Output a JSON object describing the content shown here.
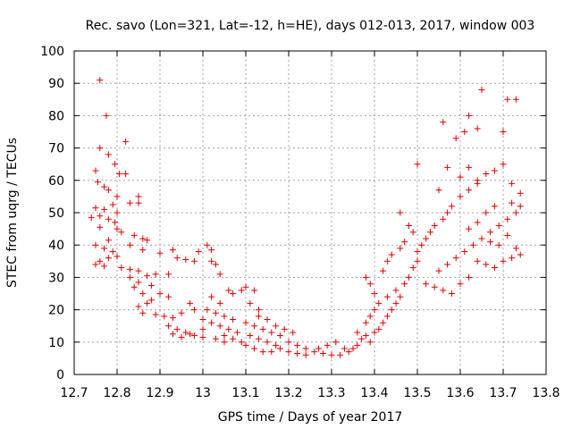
{
  "chart_data": {
    "type": "scatter",
    "title": "Rec. savo (Lon=321, Lat=-12, h=HE), days 012-013, 2017, window 003",
    "xlabel": "GPS time / Days of year 2017",
    "ylabel": "STEC from uqrg / TECUs",
    "xlim": [
      12.7,
      13.8
    ],
    "ylim": [
      0,
      100
    ],
    "xticks": [
      "12.7",
      "12.8",
      "12.9",
      "13",
      "13.1",
      "13.2",
      "13.3",
      "13.4",
      "13.5",
      "13.6",
      "13.7",
      "13.8"
    ],
    "yticks": [
      "0",
      "10",
      "20",
      "30",
      "40",
      "50",
      "60",
      "70",
      "80",
      "90",
      "100"
    ],
    "grid": true,
    "marker": "plus",
    "color": "#e00000",
    "series": [
      {
        "values": [
          [
            12.76,
            91
          ],
          [
            12.775,
            80
          ],
          [
            12.82,
            72
          ],
          [
            12.76,
            70
          ],
          [
            12.78,
            68
          ],
          [
            12.795,
            65
          ],
          [
            12.75,
            63
          ],
          [
            12.805,
            62
          ],
          [
            12.82,
            62
          ],
          [
            12.755,
            59.5
          ],
          [
            12.77,
            58
          ],
          [
            12.78,
            57
          ],
          [
            12.8,
            55
          ],
          [
            12.85,
            55
          ],
          [
            12.85,
            53
          ],
          [
            12.79,
            52.5
          ],
          [
            12.83,
            53
          ],
          [
            12.75,
            51.5
          ],
          [
            12.77,
            51
          ],
          [
            12.8,
            50
          ],
          [
            12.76,
            49
          ],
          [
            12.74,
            48.5
          ],
          [
            12.78,
            48
          ],
          [
            12.795,
            47
          ],
          [
            12.76,
            45.5
          ],
          [
            12.8,
            45
          ],
          [
            12.81,
            44
          ],
          [
            12.84,
            43
          ],
          [
            12.86,
            42
          ],
          [
            12.87,
            41.5
          ],
          [
            12.78,
            41.5
          ],
          [
            12.75,
            40
          ],
          [
            12.83,
            40
          ],
          [
            12.77,
            39
          ],
          [
            12.86,
            38.5
          ],
          [
            12.79,
            38
          ],
          [
            12.9,
            37.5
          ],
          [
            12.93,
            38.5
          ],
          [
            12.8,
            36.5
          ],
          [
            12.78,
            36
          ],
          [
            12.76,
            35
          ],
          [
            12.75,
            34
          ],
          [
            12.77,
            33.5
          ],
          [
            12.81,
            33
          ],
          [
            12.83,
            32.5
          ],
          [
            12.85,
            32
          ],
          [
            12.89,
            31
          ],
          [
            12.92,
            31
          ],
          [
            12.94,
            36
          ],
          [
            12.96,
            35.5
          ],
          [
            12.98,
            35
          ],
          [
            12.99,
            38
          ],
          [
            13.01,
            40
          ],
          [
            13.02,
            38.5
          ],
          [
            13.02,
            35
          ],
          [
            13.03,
            34
          ],
          [
            13.04,
            31
          ],
          [
            12.87,
            30.5
          ],
          [
            12.83,
            30
          ],
          [
            12.85,
            28.5
          ],
          [
            12.88,
            27.5
          ],
          [
            12.84,
            27
          ],
          [
            12.86,
            25
          ],
          [
            12.9,
            25
          ],
          [
            12.92,
            24
          ],
          [
            12.88,
            23
          ],
          [
            12.87,
            22
          ],
          [
            12.85,
            21
          ],
          [
            12.86,
            19
          ],
          [
            12.89,
            18.5
          ],
          [
            12.91,
            18
          ],
          [
            12.93,
            17.5
          ],
          [
            12.95,
            19
          ],
          [
            12.97,
            22
          ],
          [
            12.98,
            20
          ],
          [
            12.92,
            15
          ],
          [
            12.94,
            14
          ],
          [
            12.96,
            13
          ],
          [
            12.98,
            12
          ],
          [
            13.0,
            11.5
          ],
          [
            12.93,
            12.5
          ],
          [
            12.95,
            11.5
          ],
          [
            12.97,
            12.5
          ],
          [
            13.0,
            14
          ],
          [
            13.0,
            17
          ],
          [
            13.02,
            16
          ],
          [
            13.04,
            15
          ],
          [
            13.06,
            14
          ],
          [
            13.08,
            13
          ],
          [
            13.01,
            20
          ],
          [
            13.03,
            19
          ],
          [
            13.05,
            18
          ],
          [
            13.07,
            17
          ],
          [
            13.02,
            24
          ],
          [
            13.04,
            22
          ],
          [
            13.06,
            26
          ],
          [
            13.07,
            25
          ],
          [
            13.09,
            26
          ],
          [
            13.1,
            27
          ],
          [
            13.12,
            26
          ],
          [
            13.11,
            22
          ],
          [
            13.13,
            20
          ],
          [
            13.05,
            12
          ],
          [
            13.07,
            11
          ],
          [
            13.09,
            10
          ],
          [
            13.03,
            11
          ],
          [
            13.05,
            10
          ],
          [
            13.1,
            9
          ],
          [
            13.12,
            8
          ],
          [
            13.14,
            7
          ],
          [
            13.16,
            7
          ],
          [
            13.11,
            12
          ],
          [
            13.13,
            11
          ],
          [
            13.15,
            10
          ],
          [
            13.17,
            9
          ],
          [
            13.1,
            16
          ],
          [
            13.12,
            15
          ],
          [
            13.14,
            14
          ],
          [
            13.16,
            13
          ],
          [
            13.18,
            12
          ],
          [
            13.13,
            18
          ],
          [
            13.15,
            17
          ],
          [
            13.17,
            15
          ],
          [
            13.19,
            14
          ],
          [
            13.21,
            13
          ],
          [
            13.2,
            10
          ],
          [
            13.22,
            9
          ],
          [
            13.24,
            8
          ],
          [
            13.26,
            7
          ],
          [
            13.28,
            6.5
          ],
          [
            13.3,
            6
          ],
          [
            13.32,
            6
          ],
          [
            13.18,
            8
          ],
          [
            13.2,
            7
          ],
          [
            13.22,
            6.5
          ],
          [
            13.24,
            6
          ],
          [
            13.27,
            8
          ],
          [
            13.29,
            9
          ],
          [
            13.31,
            10
          ],
          [
            13.33,
            8
          ],
          [
            13.34,
            7
          ],
          [
            13.35,
            8
          ],
          [
            13.36,
            9
          ],
          [
            13.37,
            11
          ],
          [
            13.38,
            12
          ],
          [
            13.39,
            10
          ],
          [
            13.4,
            13
          ],
          [
            13.41,
            14
          ],
          [
            13.42,
            16
          ],
          [
            13.43,
            18
          ],
          [
            13.44,
            20
          ],
          [
            13.45,
            22
          ],
          [
            13.46,
            24
          ],
          [
            13.36,
            13
          ],
          [
            13.38,
            16
          ],
          [
            13.39,
            18
          ],
          [
            13.4,
            20
          ],
          [
            13.41,
            22
          ],
          [
            13.43,
            24
          ],
          [
            13.45,
            26
          ],
          [
            13.47,
            28
          ],
          [
            13.48,
            30
          ],
          [
            13.49,
            33
          ],
          [
            13.5,
            35
          ],
          [
            13.38,
            30
          ],
          [
            13.39,
            28
          ],
          [
            13.4,
            25
          ],
          [
            13.42,
            32
          ],
          [
            13.43,
            35
          ],
          [
            13.44,
            37
          ],
          [
            13.46,
            39
          ],
          [
            13.47,
            41
          ],
          [
            13.46,
            50
          ],
          [
            13.48,
            46
          ],
          [
            13.49,
            44
          ],
          [
            13.5,
            38
          ],
          [
            13.51,
            40
          ],
          [
            13.52,
            42
          ],
          [
            13.53,
            44
          ],
          [
            13.54,
            46
          ],
          [
            13.56,
            48
          ],
          [
            13.57,
            50
          ],
          [
            13.58,
            52
          ],
          [
            13.6,
            55
          ],
          [
            13.62,
            57
          ],
          [
            13.64,
            60
          ],
          [
            13.66,
            62
          ],
          [
            13.68,
            63
          ],
          [
            13.7,
            65
          ],
          [
            13.5,
            65
          ],
          [
            13.55,
            57
          ],
          [
            13.57,
            64
          ],
          [
            13.6,
            61
          ],
          [
            13.62,
            64
          ],
          [
            13.64,
            59
          ],
          [
            13.56,
            78
          ],
          [
            13.59,
            73
          ],
          [
            13.61,
            75
          ],
          [
            13.62,
            80
          ],
          [
            13.64,
            76
          ],
          [
            13.65,
            88
          ],
          [
            13.7,
            75
          ],
          [
            13.71,
            85
          ],
          [
            13.73,
            85
          ],
          [
            13.52,
            28
          ],
          [
            13.54,
            27
          ],
          [
            13.56,
            26
          ],
          [
            13.58,
            25
          ],
          [
            13.6,
            28
          ],
          [
            13.62,
            30
          ],
          [
            13.55,
            32
          ],
          [
            13.57,
            34
          ],
          [
            13.59,
            36
          ],
          [
            13.61,
            38
          ],
          [
            13.63,
            40
          ],
          [
            13.65,
            42
          ],
          [
            13.67,
            44
          ],
          [
            13.69,
            46
          ],
          [
            13.71,
            48
          ],
          [
            13.73,
            50
          ],
          [
            13.74,
            52
          ],
          [
            13.64,
            35
          ],
          [
            13.66,
            34
          ],
          [
            13.68,
            33
          ],
          [
            13.7,
            35
          ],
          [
            13.72,
            36
          ],
          [
            13.74,
            37
          ],
          [
            13.73,
            39
          ],
          [
            13.62,
            45
          ],
          [
            13.64,
            47
          ],
          [
            13.66,
            50
          ],
          [
            13.68,
            52
          ],
          [
            13.72,
            53
          ],
          [
            13.74,
            56
          ],
          [
            13.72,
            59
          ],
          [
            13.67,
            41
          ],
          [
            13.69,
            40
          ],
          [
            13.71,
            43
          ]
        ]
      }
    ]
  }
}
